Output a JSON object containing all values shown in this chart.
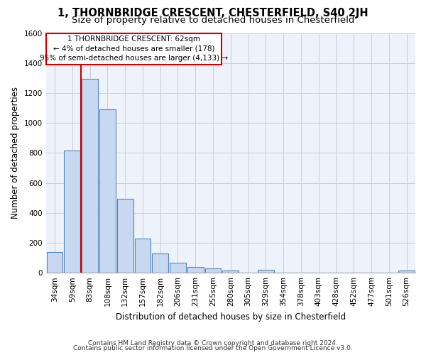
{
  "title": "1, THORNBRIDGE CRESCENT, CHESTERFIELD, S40 2JH",
  "subtitle": "Size of property relative to detached houses in Chesterfield",
  "xlabel": "Distribution of detached houses by size in Chesterfield",
  "ylabel": "Number of detached properties",
  "bar_values": [
    140,
    815,
    1295,
    1090,
    495,
    230,
    130,
    65,
    38,
    27,
    15,
    0,
    18,
    0,
    0,
    0,
    0,
    0,
    0,
    0,
    15
  ],
  "bar_labels": [
    "34sqm",
    "59sqm",
    "83sqm",
    "108sqm",
    "132sqm",
    "157sqm",
    "182sqm",
    "206sqm",
    "231sqm",
    "255sqm",
    "280sqm",
    "305sqm",
    "329sqm",
    "354sqm",
    "378sqm",
    "403sqm",
    "428sqm",
    "452sqm",
    "477sqm",
    "501sqm",
    "526sqm"
  ],
  "bar_color": "#c8d8f0",
  "bar_edge_color": "#5588bb",
  "vline_color": "#cc0000",
  "annotation_text": "1 THORNBRIDGE CRESCENT: 62sqm\n← 4% of detached houses are smaller (178)\n95% of semi-detached houses are larger (4,133) →",
  "annotation_box_color": "#cc0000",
  "ylim": [
    0,
    1600
  ],
  "yticks": [
    0,
    200,
    400,
    600,
    800,
    1000,
    1200,
    1400,
    1600
  ],
  "grid_color": "#ccccdd",
  "bg_color": "#eef2fb",
  "footer1": "Contains HM Land Registry data © Crown copyright and database right 2024.",
  "footer2": "Contains public sector information licensed under the Open Government Licence v3.0.",
  "title_fontsize": 10.5,
  "subtitle_fontsize": 9.5,
  "axis_label_fontsize": 8.5,
  "tick_fontsize": 7.5,
  "annotation_fontsize": 7.5,
  "footer_fontsize": 6.5
}
